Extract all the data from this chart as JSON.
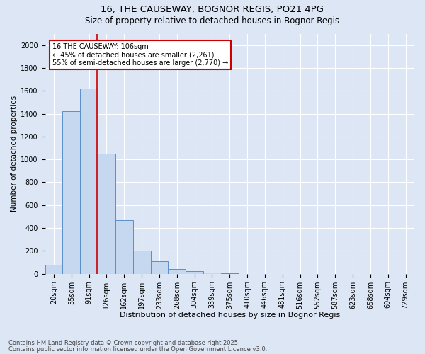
{
  "title1": "16, THE CAUSEWAY, BOGNOR REGIS, PO21 4PG",
  "title2": "Size of property relative to detached houses in Bognor Regis",
  "xlabel": "Distribution of detached houses by size in Bognor Regis",
  "ylabel": "Number of detached properties",
  "categories": [
    "20sqm",
    "55sqm",
    "91sqm",
    "126sqm",
    "162sqm",
    "197sqm",
    "233sqm",
    "268sqm",
    "304sqm",
    "339sqm",
    "375sqm",
    "410sqm",
    "446sqm",
    "481sqm",
    "516sqm",
    "552sqm",
    "587sqm",
    "623sqm",
    "658sqm",
    "694sqm",
    "729sqm"
  ],
  "values": [
    80,
    1420,
    1620,
    1050,
    470,
    200,
    110,
    40,
    25,
    10,
    5,
    0,
    0,
    0,
    0,
    0,
    0,
    0,
    0,
    0,
    0
  ],
  "bar_color": "#c5d8f0",
  "bar_edge_color": "#5b8fc9",
  "bg_color": "#dce6f5",
  "grid_color": "#ffffff",
  "vline_color": "#cc0000",
  "vline_x": 2.45,
  "annotation_text": "16 THE CAUSEWAY: 106sqm\n← 45% of detached houses are smaller (2,261)\n55% of semi-detached houses are larger (2,770) →",
  "annotation_box_color": "#cc0000",
  "annotation_fill": "white",
  "footer1": "Contains HM Land Registry data © Crown copyright and database right 2025.",
  "footer2": "Contains public sector information licensed under the Open Government Licence v3.0.",
  "ylim": [
    0,
    2100
  ],
  "yticks": [
    0,
    200,
    400,
    600,
    800,
    1000,
    1200,
    1400,
    1600,
    1800,
    2000
  ],
  "title1_fontsize": 9.5,
  "title2_fontsize": 8.5,
  "xlabel_fontsize": 8,
  "ylabel_fontsize": 7.5,
  "tick_fontsize": 7,
  "annotation_fontsize": 7,
  "footer_fontsize": 6
}
